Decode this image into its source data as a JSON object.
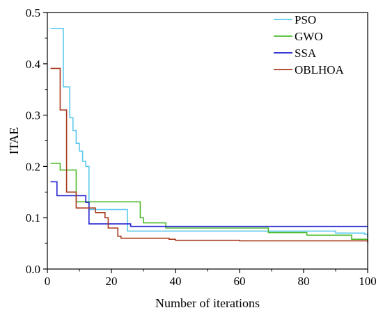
{
  "chart_data": {
    "type": "line",
    "title": "",
    "xlabel": "Number of iterations",
    "ylabel": "ITAE",
    "xlim": [
      0,
      100
    ],
    "ylim": [
      0,
      0.5
    ],
    "xticks": [
      0,
      20,
      40,
      60,
      80,
      100
    ],
    "yticks": [
      0.0,
      0.1,
      0.2,
      0.3,
      0.4,
      0.5
    ],
    "ytick_labels": [
      "0.0",
      "0.1",
      "0.2",
      "0.3",
      "0.4",
      "0.5"
    ],
    "xtick_labels": [
      "0",
      "20",
      "40",
      "60",
      "80",
      "100"
    ],
    "grid": false,
    "legend_position": "top-right",
    "series": [
      {
        "name": "PSO",
        "color": "#5bc8ee",
        "x": [
          1,
          4,
          5,
          6,
          7,
          8,
          9,
          10,
          11,
          12,
          13,
          24,
          25,
          85,
          90,
          99,
          100
        ],
        "y": [
          0.469,
          0.469,
          0.355,
          0.355,
          0.295,
          0.27,
          0.245,
          0.23,
          0.21,
          0.2,
          0.116,
          0.116,
          0.074,
          0.074,
          0.07,
          0.068,
          0.062
        ]
      },
      {
        "name": "GWO",
        "color": "#4dbb2b",
        "x": [
          1,
          3,
          4,
          8,
          9,
          28,
          29,
          30,
          36,
          37,
          68,
          69,
          80,
          81,
          94,
          95,
          100
        ],
        "y": [
          0.206,
          0.206,
          0.193,
          0.193,
          0.131,
          0.131,
          0.1,
          0.09,
          0.09,
          0.08,
          0.08,
          0.071,
          0.071,
          0.066,
          0.066,
          0.058,
          0.058
        ]
      },
      {
        "name": "SSA",
        "color": "#1f1fcf",
        "x": [
          1,
          2,
          3,
          12,
          13,
          25,
          26,
          100
        ],
        "y": [
          0.17,
          0.17,
          0.143,
          0.13,
          0.088,
          0.088,
          0.083,
          0.083
        ]
      },
      {
        "name": "OBLHOA",
        "color": "#a83a1e",
        "x": [
          1,
          3,
          4,
          5,
          6,
          8,
          9,
          14,
          15,
          18,
          19,
          22,
          23,
          38,
          40,
          60,
          100
        ],
        "y": [
          0.391,
          0.391,
          0.31,
          0.31,
          0.15,
          0.15,
          0.119,
          0.119,
          0.11,
          0.1,
          0.08,
          0.064,
          0.06,
          0.058,
          0.056,
          0.055,
          0.052
        ]
      }
    ]
  }
}
